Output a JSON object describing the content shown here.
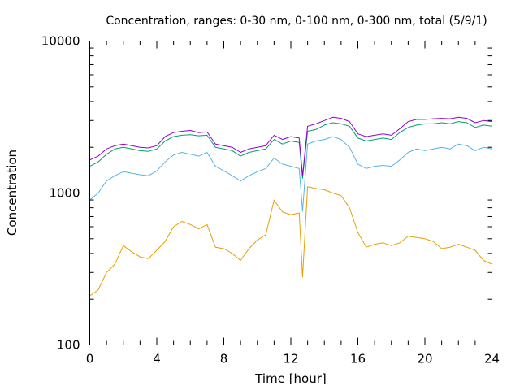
{
  "chart_data": {
    "type": "line",
    "title": "Concentration, ranges: 0-30 nm, 0-100 nm, 0-300 nm, total (5/9/1)",
    "xlabel": "Time [hour]",
    "ylabel": "Concentration",
    "xlim": [
      0,
      24
    ],
    "ylim": [
      100,
      10000
    ],
    "yscale": "log",
    "grid": false,
    "legend": "none",
    "x_ticks": [
      0,
      4,
      8,
      12,
      16,
      20,
      24
    ],
    "x_tick_labels": [
      "0",
      "4",
      "8",
      "12",
      "16",
      "20",
      "24"
    ],
    "y_ticks": [
      100,
      1000,
      10000
    ],
    "y_tick_labels": [
      "100",
      "1000",
      "10000"
    ],
    "x": [
      0,
      0.5,
      1,
      1.5,
      2,
      2.5,
      3,
      3.5,
      4,
      4.5,
      5,
      5.5,
      6,
      6.5,
      7,
      7.5,
      8,
      8.5,
      9,
      9.5,
      10,
      10.5,
      11,
      11.5,
      12,
      12.5,
      12.7,
      13,
      13.5,
      14,
      14.5,
      15,
      15.5,
      16,
      16.5,
      17,
      17.5,
      18,
      18.5,
      19,
      19.5,
      20,
      20.5,
      21,
      21.5,
      22,
      22.5,
      23,
      23.5,
      24
    ],
    "series": [
      {
        "color": "#e69f00",
        "values": [
          210,
          230,
          300,
          340,
          450,
          410,
          380,
          370,
          420,
          480,
          600,
          650,
          620,
          580,
          620,
          440,
          430,
          400,
          360,
          430,
          490,
          530,
          900,
          750,
          720,
          740,
          280,
          1100,
          1070,
          1050,
          1000,
          960,
          800,
          550,
          440,
          460,
          470,
          450,
          470,
          520,
          510,
          500,
          480,
          430,
          440,
          460,
          440,
          420,
          360,
          340
        ]
      },
      {
        "color": "#56b4e9",
        "values": [
          900,
          1000,
          1200,
          1300,
          1380,
          1350,
          1320,
          1300,
          1400,
          1600,
          1780,
          1850,
          1800,
          1750,
          1850,
          1500,
          1400,
          1300,
          1200,
          1300,
          1380,
          1450,
          1700,
          1550,
          1500,
          1450,
          760,
          2100,
          2200,
          2250,
          2350,
          2250,
          2000,
          1550,
          1450,
          1500,
          1520,
          1500,
          1650,
          1850,
          1950,
          1900,
          1950,
          2000,
          1950,
          2100,
          2050,
          1900,
          2000,
          1950
        ]
      },
      {
        "color": "#009e73",
        "values": [
          1500,
          1600,
          1800,
          1950,
          2000,
          1950,
          1900,
          1880,
          1950,
          2200,
          2350,
          2400,
          2420,
          2380,
          2400,
          2000,
          1950,
          1900,
          1750,
          1850,
          1900,
          1950,
          2250,
          2100,
          2200,
          2150,
          1250,
          2550,
          2620,
          2800,
          2900,
          2850,
          2750,
          2300,
          2200,
          2250,
          2300,
          2250,
          2500,
          2700,
          2800,
          2850,
          2850,
          2900,
          2850,
          2950,
          2900,
          2700,
          2800,
          2750
        ]
      },
      {
        "color": "#9400d3",
        "values": [
          1650,
          1750,
          1950,
          2050,
          2100,
          2050,
          2000,
          1980,
          2050,
          2350,
          2500,
          2550,
          2580,
          2500,
          2520,
          2100,
          2050,
          2000,
          1850,
          1950,
          2000,
          2050,
          2400,
          2250,
          2350,
          2300,
          1300,
          2750,
          2850,
          3000,
          3150,
          3100,
          2950,
          2450,
          2350,
          2400,
          2450,
          2400,
          2650,
          2950,
          3050,
          3050,
          3080,
          3100,
          3080,
          3150,
          3100,
          2900,
          3000,
          2950
        ]
      }
    ]
  }
}
